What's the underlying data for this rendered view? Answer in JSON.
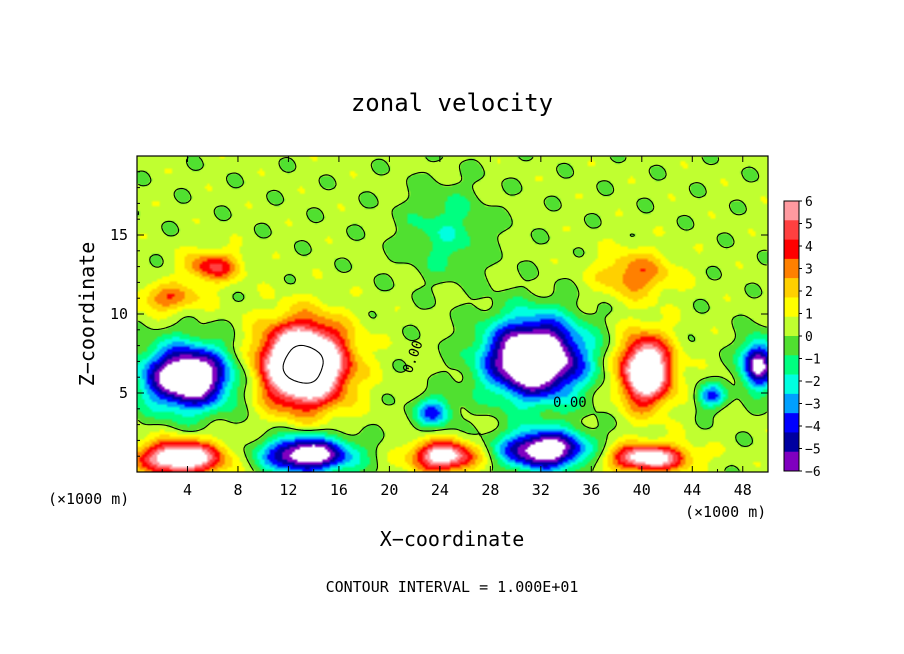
{
  "chart_data": {
    "type": "heatmap",
    "title": "zonal velocity",
    "xlabel": "X−coordinate",
    "ylabel": "Z−coordinate",
    "x_unit": "(×1000 m)",
    "y_unit": "(×1000 m)",
    "xlim": [
      0,
      50
    ],
    "ylim": [
      0,
      20
    ],
    "x_ticks": [
      4,
      8,
      12,
      16,
      20,
      24,
      28,
      32,
      36,
      40,
      44,
      48
    ],
    "x_tick_labels": [
      "4",
      "8",
      "12",
      "16",
      "20",
      "24",
      "28",
      "32",
      "36",
      "40",
      "44",
      "48"
    ],
    "y_ticks": [
      5,
      10,
      15
    ],
    "y_tick_labels": [
      "5",
      "10",
      "15"
    ],
    "colorbar": {
      "min": -6,
      "max": 6,
      "ticks": [
        6,
        5,
        4,
        3,
        2,
        1,
        0,
        -1,
        -2,
        -3,
        -4,
        -5,
        -6
      ],
      "tick_labels": [
        "6",
        "5",
        "4",
        "3",
        "2",
        "1",
        "0",
        "−1",
        "−2",
        "−3",
        "−4",
        "−5",
        "−6"
      ],
      "colors": [
        "#ff9aa0",
        "#ff4040",
        "#ff0000",
        "#ff8000",
        "#ffd000",
        "#ffff00",
        "#c0ff30",
        "#50e030",
        "#00ff80",
        "#00ffe0",
        "#00a0ff",
        "#0000ff",
        "#0000a0",
        "#8000c0"
      ]
    },
    "contour_labels": [
      {
        "text": "0.00",
        "x": 34.3,
        "z": 4.1
      },
      {
        "text": "0.00",
        "x": 22.2,
        "z": 7.2
      }
    ],
    "field_features": [
      {
        "x": 4,
        "z": 6.0,
        "rx": 3.6,
        "rz": 2.1,
        "value": -9
      },
      {
        "x": 13.2,
        "z": 6.8,
        "rx": 3.4,
        "rz": 2.6,
        "value": 12
      },
      {
        "x": 31.5,
        "z": 7.2,
        "rx": 4.0,
        "rz": 2.6,
        "value": -10
      },
      {
        "x": 40.3,
        "z": 6.4,
        "rx": 2.1,
        "rz": 2.2,
        "value": 9
      },
      {
        "x": 49.2,
        "z": 6.8,
        "rx": 1.4,
        "rz": 1.6,
        "value": -7
      },
      {
        "x": 3.5,
        "z": 0.9,
        "rx": 3.4,
        "rz": 1.1,
        "value": 8
      },
      {
        "x": 13.5,
        "z": 1.1,
        "rx": 3.6,
        "rz": 1.2,
        "value": -8
      },
      {
        "x": 24.3,
        "z": 1.0,
        "rx": 2.6,
        "rz": 1.0,
        "value": 7
      },
      {
        "x": 32.3,
        "z": 1.4,
        "rx": 3.5,
        "rz": 1.3,
        "value": -8
      },
      {
        "x": 40.5,
        "z": 0.9,
        "rx": 3.2,
        "rz": 0.9,
        "value": 7
      },
      {
        "x": 23.5,
        "z": 3.8,
        "rx": 1.6,
        "rz": 1.0,
        "value": -4
      },
      {
        "x": 45.5,
        "z": 4.8,
        "rx": 1.2,
        "rz": 0.8,
        "value": -4
      },
      {
        "x": 6,
        "z": 13.0,
        "rx": 2.2,
        "rz": 1.0,
        "value": 4
      },
      {
        "x": 2.5,
        "z": 11.0,
        "rx": 2.6,
        "rz": 0.9,
        "value": 3
      },
      {
        "x": 39.5,
        "z": 12.5,
        "rx": 3.0,
        "rz": 1.5,
        "value": 3
      },
      {
        "x": 24.5,
        "z": 15.2,
        "rx": 3.5,
        "rz": 3.0,
        "value": -1.8
      }
    ],
    "grid": false,
    "legend": "colorbar-right"
  },
  "footer": "CONTOUR INTERVAL = 1.000E+01"
}
